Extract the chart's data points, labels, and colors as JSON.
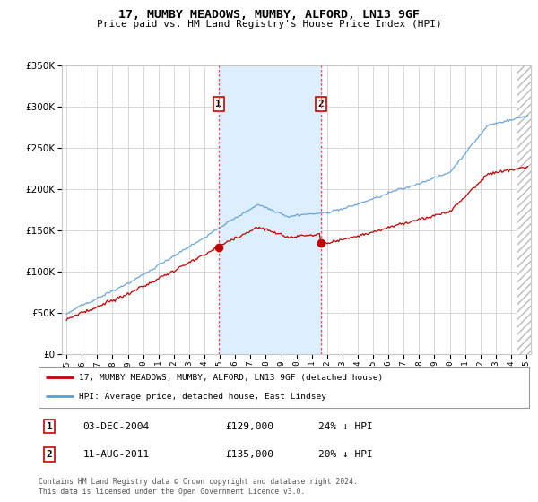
{
  "title": "17, MUMBY MEADOWS, MUMBY, ALFORD, LN13 9GF",
  "subtitle": "Price paid vs. HM Land Registry's House Price Index (HPI)",
  "legend_line1": "17, MUMBY MEADOWS, MUMBY, ALFORD, LN13 9GF (detached house)",
  "legend_line2": "HPI: Average price, detached house, East Lindsey",
  "footer": "Contains HM Land Registry data © Crown copyright and database right 2024.\nThis data is licensed under the Open Government Licence v3.0.",
  "transaction1_label": "1",
  "transaction1_date": "03-DEC-2004",
  "transaction1_price": "£129,000",
  "transaction1_hpi": "24% ↓ HPI",
  "transaction2_label": "2",
  "transaction2_date": "11-AUG-2011",
  "transaction2_price": "£135,000",
  "transaction2_hpi": "20% ↓ HPI",
  "sale1_year": 2004.917,
  "sale1_value": 129000,
  "sale2_year": 2011.583,
  "sale2_value": 135000,
  "ylim": [
    0,
    350000
  ],
  "xlim_start": 1994.7,
  "xlim_end": 2025.3,
  "hpi_color": "#5b9bd5",
  "price_color": "#c00000",
  "shade_color": "#ddeeff",
  "background_color": "#ffffff",
  "grid_color": "#c8c8c8",
  "hatch_color": "#bbbbbb",
  "yticks": [
    0,
    50000,
    100000,
    150000,
    200000,
    250000,
    300000,
    350000
  ]
}
